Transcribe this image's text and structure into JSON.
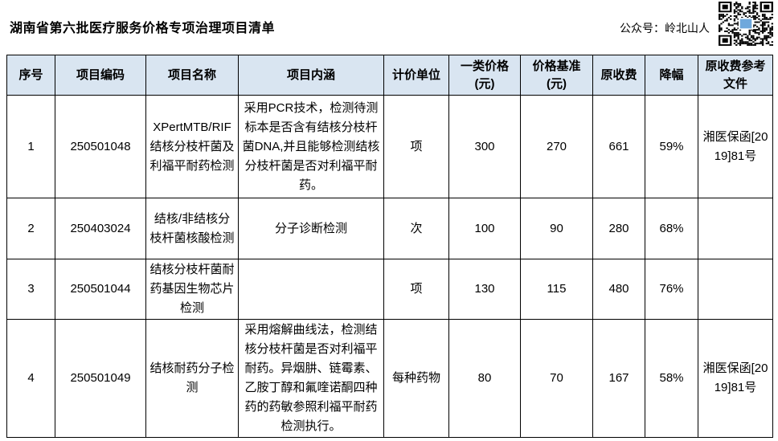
{
  "header": {
    "title": "湖南省第六批医疗服务价格专项治理项目清单",
    "account_label": "公众号：岭北山人",
    "qr_icon": "qr-code"
  },
  "colors": {
    "header_bg": "#d9e5f1",
    "border": "#000000",
    "qr_logo_blue": "#6fa8dc"
  },
  "table": {
    "headers": [
      "序号",
      "项目编码",
      "项目名称",
      "项目内涵",
      "计价单位",
      "一类价格\n(元)",
      "价格基准\n(元)",
      "原收费",
      "降幅",
      "原收费参考文件"
    ],
    "rows": [
      {
        "seq": "1",
        "code": "250501048",
        "name": "XPertMTB/RIF结核分枝杆菌及利福平耐药检测",
        "content": "采用PCR技术，检测待测标本是否含有结核分枝杆菌DNA,并且能够检测结核分枝杆菌是否对利福平耐药。",
        "unit": "项",
        "price_class1": "300",
        "price_base": "270",
        "orig_fee": "661",
        "reduction": "59%",
        "ref_doc": "湘医保函[2019]81号"
      },
      {
        "seq": "2",
        "code": "250403024",
        "name": "结核/非结核分枝杆菌核酸检测",
        "content": "分子诊断检测",
        "unit": "次",
        "price_class1": "100",
        "price_base": "90",
        "orig_fee": "280",
        "reduction": "68%",
        "ref_doc": ""
      },
      {
        "seq": "3",
        "code": "250501044",
        "name": "结核分枝杆菌耐药基因生物芯片检测",
        "content": "",
        "unit": "项",
        "price_class1": "130",
        "price_base": "115",
        "orig_fee": "480",
        "reduction": "76%",
        "ref_doc": ""
      },
      {
        "seq": "4",
        "code": "250501049",
        "name": "结核耐药分子检测",
        "content": "采用熔解曲线法，检测结核分枝杆菌是否对利福平耐药。异烟肼、链霉素、乙胺丁醇和氟喹诺酮四种药的药敏参照利福平耐药检测执行。",
        "unit": "每种药物",
        "price_class1": "80",
        "price_base": "70",
        "orig_fee": "167",
        "reduction": "58%",
        "ref_doc": "湘医保函[2019]81号"
      }
    ]
  }
}
